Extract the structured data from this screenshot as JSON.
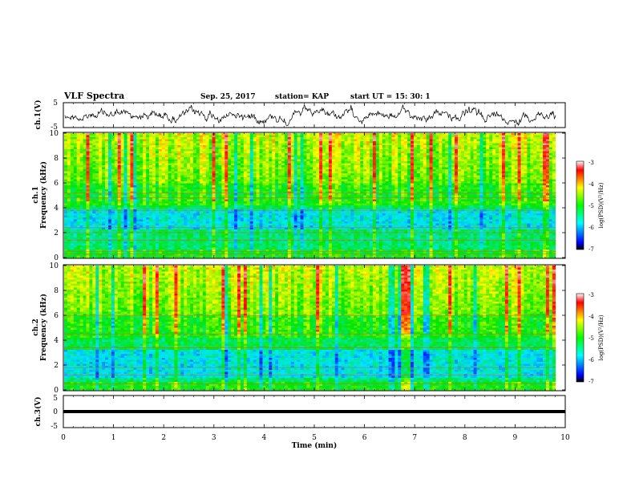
{
  "header": {
    "title": "VLF Spectra",
    "date": "Sep. 25, 2017",
    "station": "station= KAP",
    "start_ut": "start  UT =   15: 30: 1"
  },
  "chart_data": [
    {
      "type": "line",
      "ylabel": "ch.1(V)",
      "ylim": [
        -5,
        5
      ],
      "yticks": [
        "5",
        "-5"
      ],
      "xlim": [
        0,
        10
      ],
      "description_only_line": true
    },
    {
      "type": "heatmap",
      "ylabel": "ch.1",
      "ylabel2": "Frequency  (kHz)",
      "ylim": [
        0,
        10
      ],
      "yticks": [
        "0",
        "2",
        "4",
        "6",
        "8",
        "10"
      ],
      "xlim": [
        0,
        10
      ],
      "data_end_min": 9.82,
      "colorbar": {
        "label": "log(PSD)(V²/Hz)",
        "ticks": [
          "-3",
          "-4",
          "-5",
          "-6",
          "-7"
        ],
        "range": [
          -7,
          -3
        ]
      }
    },
    {
      "type": "heatmap",
      "ylabel": "ch.2",
      "ylabel2": "Frequency  (kHz)",
      "ylim": [
        0,
        10
      ],
      "yticks": [
        "0",
        "2",
        "4",
        "6",
        "8",
        "10"
      ],
      "xlim": [
        0,
        10
      ],
      "data_end_min": 9.82,
      "colorbar": {
        "label": "log(PSD)(V²/Hz)",
        "ticks": [
          "-3",
          "-4",
          "-5",
          "-6",
          "-7"
        ],
        "range": [
          -7,
          -3
        ]
      }
    },
    {
      "type": "line",
      "ylabel": "ch.3(V)",
      "ylim": [
        -5,
        5
      ],
      "yticks": [
        "5",
        "0",
        "-5"
      ],
      "xlim": [
        0,
        10
      ],
      "constant_value": 0,
      "xticks": [
        "0",
        "1",
        "2",
        "3",
        "4",
        "5",
        "6",
        "7",
        "8",
        "9",
        "10"
      ],
      "xlabel": "Time  (min)"
    }
  ]
}
